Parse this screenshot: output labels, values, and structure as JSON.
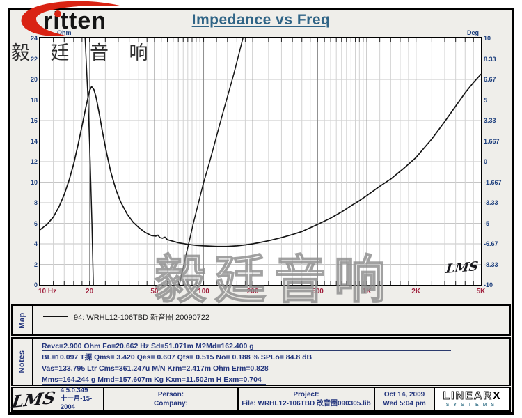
{
  "header": {
    "title": "Impedance vs Freq"
  },
  "logo": {
    "brand_text": "ritten",
    "cjk_text": "毅 廷 音 响"
  },
  "watermark_text": "毅廷音响",
  "chart": {
    "y_left_unit": "Ohm",
    "y_right_unit": "Deg",
    "left_ticks": [
      "24",
      "22",
      "20",
      "18",
      "16",
      "14",
      "12",
      "10",
      "8",
      "6",
      "4",
      "2",
      "0"
    ],
    "right_ticks": [
      "10",
      "8.33",
      "6.67",
      "5",
      "3.33",
      "1.667",
      "0",
      "-1.667",
      "-3.33",
      "-5",
      "-6.67",
      "-8.33",
      "-10"
    ],
    "x_ticks": [
      {
        "f": 10,
        "label": "10 Hz"
      },
      {
        "f": 20,
        "label": "20"
      },
      {
        "f": 50,
        "label": "50"
      },
      {
        "f": 100,
        "label": "100"
      },
      {
        "f": 200,
        "label": "200"
      },
      {
        "f": 500,
        "label": "500"
      },
      {
        "f": 1000,
        "label": "1K"
      },
      {
        "f": 2000,
        "label": "2K"
      },
      {
        "f": 5000,
        "label": "5K"
      }
    ],
    "inplot_logo": "LMS"
  },
  "chart_data": {
    "type": "line",
    "title": "Impedance vs Freq",
    "x_axis": {
      "label": "Hz",
      "scale": "log",
      "range": [
        10,
        5000
      ],
      "ticks": [
        10,
        20,
        50,
        100,
        200,
        500,
        1000,
        2000,
        5000
      ]
    },
    "y_left_axis": {
      "label": "Ohm",
      "range": [
        0,
        24
      ],
      "step": 2
    },
    "y_right_axis": {
      "label": "Deg",
      "range": [
        -10,
        10
      ],
      "step": 1.667
    },
    "grid": {
      "minor_multipliers": [
        1.2,
        1.4,
        1.6,
        1.8,
        2.5,
        3,
        3.5,
        4,
        4.5,
        5.5,
        6,
        6.5,
        7,
        7.5,
        8,
        8.5,
        9,
        9.5
      ],
      "major_lines_hz": [
        20,
        50,
        100,
        200,
        500,
        1000,
        2000
      ],
      "ohm_line_step": 2
    },
    "legend": "94: WRHL12-106TBD 新音圈 20090722",
    "series": [
      {
        "name": "impedance_ohm",
        "axis": "ohm",
        "points": [
          [
            10,
            5.4
          ],
          [
            11,
            5.9
          ],
          [
            12,
            6.6
          ],
          [
            13,
            7.6
          ],
          [
            14,
            8.8
          ],
          [
            15,
            10.2
          ],
          [
            16,
            11.8
          ],
          [
            17,
            13.6
          ],
          [
            18,
            15.5
          ],
          [
            19,
            17.3
          ],
          [
            20,
            18.9
          ],
          [
            20.6,
            19.3
          ],
          [
            21.3,
            19.0
          ],
          [
            22,
            18.2
          ],
          [
            23,
            16.6
          ],
          [
            24,
            14.9
          ],
          [
            25.5,
            12.8
          ],
          [
            27,
            11.0
          ],
          [
            29,
            9.3
          ],
          [
            31,
            8.1
          ],
          [
            34,
            6.9
          ],
          [
            37,
            6.1
          ],
          [
            40,
            5.6
          ],
          [
            44,
            5.1
          ],
          [
            48,
            4.8
          ],
          [
            51,
            4.75
          ],
          [
            52.5,
            4.85
          ],
          [
            54,
            4.6
          ],
          [
            56,
            4.55
          ],
          [
            58,
            4.65
          ],
          [
            60,
            4.4
          ],
          [
            65,
            4.25
          ],
          [
            70,
            4.1
          ],
          [
            80,
            3.95
          ],
          [
            90,
            3.85
          ],
          [
            100,
            3.8
          ],
          [
            120,
            3.75
          ],
          [
            140,
            3.75
          ],
          [
            160,
            3.8
          ],
          [
            180,
            3.9
          ],
          [
            200,
            4.0
          ],
          [
            250,
            4.3
          ],
          [
            300,
            4.6
          ],
          [
            350,
            4.9
          ],
          [
            400,
            5.2
          ],
          [
            500,
            5.9
          ],
          [
            600,
            6.5
          ],
          [
            700,
            7.1
          ],
          [
            800,
            7.7
          ],
          [
            900,
            8.2
          ],
          [
            1000,
            8.7
          ],
          [
            1200,
            9.6
          ],
          [
            1400,
            10.3
          ],
          [
            1700,
            11.4
          ],
          [
            2000,
            12.4
          ],
          [
            2500,
            14.2
          ],
          [
            3000,
            15.9
          ],
          [
            3500,
            17.4
          ],
          [
            4000,
            18.7
          ],
          [
            4500,
            19.7
          ],
          [
            5000,
            20.5
          ]
        ]
      },
      {
        "name": "phase_deg_resonance_drop",
        "axis": "deg",
        "points": [
          [
            18.8,
            10
          ],
          [
            19.6,
            5
          ],
          [
            20.2,
            0
          ],
          [
            20.7,
            -5
          ],
          [
            21.1,
            -10
          ]
        ]
      },
      {
        "name": "phase_deg_rising",
        "axis": "deg",
        "points": [
          [
            71,
            -10
          ],
          [
            78,
            -7.6
          ],
          [
            86.5,
            -5
          ],
          [
            100,
            -1.7
          ],
          [
            109,
            0
          ],
          [
            129,
            3.6
          ],
          [
            153,
            7.1
          ],
          [
            174,
            10
          ]
        ]
      }
    ]
  },
  "map": {
    "label": "Map",
    "legend_text": "94: WRHL12-106TBD  新音圈  20090722"
  },
  "notes": {
    "label": "Notes",
    "lines": [
      "Revc=2.900 Ohm  Fo=20.662 Hz  Sd=51.071m M?Md=162.400 g",
      "BL=10.097 T搮  Qms= 3.420  Qes= 0.607  Qts= 0.515  No= 0.188 %  SPLo= 84.8 dB",
      "Vas=133.795 Ltr  Cms=361.247u M/N  Krm=2.417m Ohm  Erm=0.828",
      "Mms=164.244 g  Mmd=157.607m Kg  Kxm=11.502m H  Exm=0.704"
    ]
  },
  "footer": {
    "lms_logo": "LMS",
    "version": "4.5.0.349",
    "version_date": "十一月-15-2004",
    "person_label": "Person:",
    "company_label": "Company:",
    "project_label": "Project:",
    "file_label": "File: WRHL12-106TBD 改音圈090305.lib",
    "date": "Oct 14, 2009",
    "time": "Wed  5:04 pm",
    "linearx": {
      "word": "LINEAR",
      "x": "X",
      "sub": "SYSTEMS"
    }
  },
  "colors": {
    "accent_red": "#d92313",
    "title_blue": "#2f6486",
    "axis_value_blue": "#1d3f7d",
    "freq_label_red": "#a01f3c",
    "panel_gray": "#efeeea",
    "curve_black": "#141414"
  }
}
